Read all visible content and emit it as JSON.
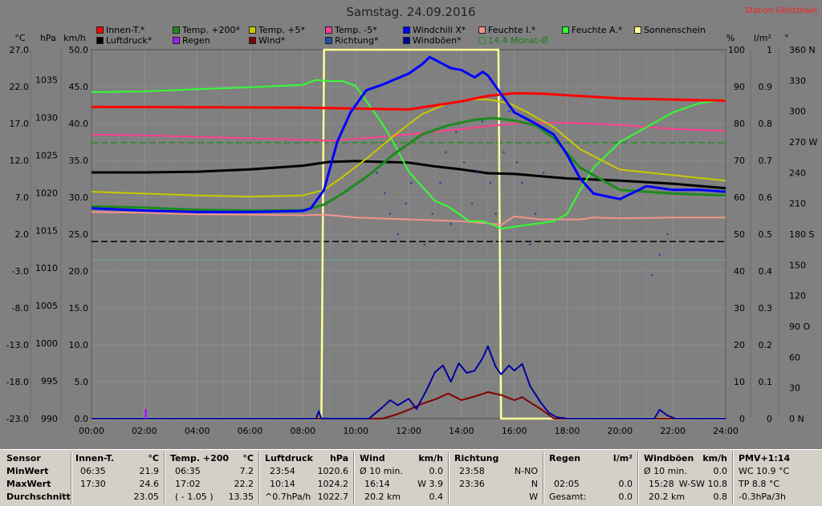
{
  "title": "Samstag. 24.09.2016",
  "station": "Station Göritzhain",
  "colors": {
    "bg": "#808080",
    "grid": "#9a9a9a",
    "innen": "#ff0000",
    "t200": "#1e8a1e",
    "t5": "#c8c800",
    "tm5": "#ff3f8f",
    "wchill": "#0000ff",
    "feuchteI": "#f4948c",
    "feuchteA": "#33ff33",
    "sonne": "#ffff99",
    "luft": "#000000",
    "regen": "#a020f0",
    "wind": "#800000",
    "richtung": "#1f4f9f",
    "boen": "#0000a0",
    "monat": "#2a8a2a"
  },
  "legend": [
    {
      "label": "Innen-T.*",
      "color": "#ff0000"
    },
    {
      "label": "Temp. +200*",
      "color": "#1e8a1e"
    },
    {
      "label": "Temp. +5*",
      "color": "#c8c800"
    },
    {
      "label": "Temp. -5*",
      "color": "#ff3f8f"
    },
    {
      "label": "Windchill X*",
      "color": "#0000ff"
    },
    {
      "label": "Feuchte I.*",
      "color": "#f4948c"
    },
    {
      "label": "Feuchte A.*",
      "color": "#33ff33"
    },
    {
      "label": "Sonnenschein",
      "color": "#ffff99"
    },
    {
      "label": "Luftdruck*",
      "color": "#000000"
    },
    {
      "label": "Regen",
      "color": "#a020f0"
    },
    {
      "label": "Wind*",
      "color": "#800000"
    },
    {
      "label": "Richtung*",
      "color": "#1f4f9f"
    },
    {
      "label": "Windböen*",
      "color": "#0000a0"
    },
    {
      "label": "14.4 Monat-Ø",
      "color": "none"
    }
  ],
  "chart_data": {
    "type": "line",
    "xlim": [
      "00:00",
      "24:00"
    ],
    "x_ticks": [
      "00:00",
      "02:00",
      "04:00",
      "06:00",
      "08:00",
      "10:00",
      "12:00",
      "14:00",
      "16:00",
      "18:00",
      "20:00",
      "22:00",
      "24:00"
    ],
    "axes": {
      "celsius": {
        "unit": "°C",
        "ticks": [
          "27.0",
          "22.0",
          "17.0",
          "12.0",
          "7.0",
          "2.0",
          "-3.0",
          "-8.0",
          "-13.0",
          "-18.0",
          "-23.0"
        ],
        "range": [
          -23,
          27
        ]
      },
      "hpa": {
        "unit": "hPa",
        "ticks": [
          "1035",
          "1030",
          "1025",
          "1020",
          "1015",
          "1010",
          "1005",
          "1000",
          "995",
          "990"
        ],
        "range": [
          990,
          1039
        ]
      },
      "kmh": {
        "unit": "km/h",
        "ticks": [
          "50.0",
          "45.0",
          "40.0",
          "35.0",
          "30.0",
          "25.0",
          "20.0",
          "15.0",
          "10.0",
          "5.0",
          "0.0"
        ],
        "range": [
          0,
          50
        ]
      },
      "percent": {
        "unit": "%",
        "ticks": [
          "100",
          "90",
          "80",
          "70",
          "60",
          "50",
          "40",
          "30",
          "20",
          "10",
          "0"
        ],
        "range": [
          0,
          100
        ]
      },
      "rain": {
        "unit": "l/m²",
        "ticks": [
          "1",
          "0.9",
          "0.8",
          "0.7",
          "0.6",
          "0.5",
          "0.4",
          "0.3",
          "0.2",
          "0.1",
          "0"
        ],
        "range": [
          0,
          1
        ]
      },
      "direction": {
        "unit": "°",
        "ticks": [
          "360 N",
          "330",
          "300",
          "270 W",
          "240",
          "210",
          "180 S",
          "150",
          "120",
          "90 O",
          "60",
          "30",
          "0 N"
        ],
        "range": [
          0,
          360
        ]
      }
    },
    "series": [
      {
        "name": "Innen-T.*",
        "axis": "percent",
        "x": [
          0,
          8,
          12,
          14,
          15,
          16,
          17,
          20,
          24
        ],
        "y": [
          84.5,
          84.3,
          83.8,
          86,
          87.5,
          88.2,
          88.1,
          86.8,
          86.2
        ]
      },
      {
        "name": "Temp. +200*",
        "axis": "percent",
        "x": [
          0,
          2,
          4,
          6,
          8,
          8.8,
          9.5,
          10.5,
          11.5,
          12.5,
          13.5,
          14.5,
          15.2,
          16,
          16.8,
          17.5,
          18.5,
          20,
          22,
          24
        ],
        "y": [
          57.5,
          57.2,
          56.6,
          56.4,
          56.5,
          58,
          61,
          66,
          72,
          77,
          79.5,
          81,
          81.5,
          80.8,
          79.5,
          76,
          68,
          62,
          61,
          60.5
        ]
      },
      {
        "name": "Temp. +5*",
        "axis": "percent",
        "x": [
          0,
          2,
          4,
          6,
          8,
          8.8,
          9.5,
          10.5,
          11.5,
          12.5,
          13.5,
          14.3,
          15,
          15.8,
          16.5,
          17.5,
          18.5,
          20,
          22,
          24
        ],
        "y": [
          61.5,
          61,
          60.5,
          60.2,
          60.5,
          62,
          65.5,
          71,
          77,
          82.5,
          85.5,
          86.5,
          86.5,
          85.5,
          83,
          79,
          73,
          67.5,
          66,
          64.5
        ]
      },
      {
        "name": "Temp. -5*",
        "axis": "percent",
        "x": [
          0,
          2,
          4,
          6,
          8,
          9,
          10,
          12,
          14,
          15,
          16,
          17,
          18,
          20,
          22,
          24
        ],
        "y": [
          77,
          76.8,
          76.4,
          76,
          75.6,
          75.3,
          75.8,
          77,
          78.5,
          79.3,
          80,
          80.2,
          80.2,
          79.6,
          78.5,
          78
        ]
      },
      {
        "name": "Windchill X*",
        "axis": "percent",
        "x": [
          0,
          2,
          4,
          6,
          8,
          8.3,
          8.8,
          9.3,
          9.8,
          10.4,
          11,
          11.5,
          12,
          12.5,
          12.8,
          13.2,
          13.6,
          14,
          14.5,
          14.8,
          15,
          15.5,
          16,
          16.8,
          17.5,
          18,
          18.5,
          19,
          20,
          21,
          22,
          23,
          24
        ],
        "y": [
          57,
          56.4,
          56,
          56,
          56.3,
          57,
          62,
          75,
          83,
          89,
          90.5,
          92,
          93.5,
          96,
          98,
          96.5,
          95,
          94.5,
          92.5,
          94,
          93,
          88,
          83,
          80,
          77,
          71.5,
          65,
          61,
          59.5,
          63,
          62,
          62,
          61.5
        ]
      },
      {
        "name": "Feuchte I.*",
        "axis": "percent",
        "x": [
          0,
          2,
          4,
          6,
          8,
          8.8,
          10,
          12,
          14,
          15.2,
          15.5,
          16,
          17,
          18.5,
          19,
          20,
          22,
          24
        ],
        "y": [
          56,
          55.8,
          55.4,
          55.3,
          55.1,
          55.3,
          54.5,
          54,
          53.5,
          52.8,
          52.5,
          54.8,
          54,
          54,
          54.5,
          54.3,
          54.5,
          54.5
        ]
      },
      {
        "name": "Feuchte A.*",
        "axis": "percent",
        "x": [
          0,
          2,
          4,
          6,
          8,
          8.5,
          9,
          9.5,
          10,
          11,
          11.5,
          12,
          12.5,
          13,
          13.5,
          14,
          14.3,
          14.8,
          15.2,
          15.5,
          16,
          16.5,
          17,
          17.5,
          18,
          18.5,
          19,
          20,
          21,
          22,
          23,
          24
        ],
        "y": [
          88.5,
          88.7,
          89.3,
          89.8,
          90.5,
          91.8,
          91.5,
          91.5,
          90.2,
          80,
          74,
          67,
          63,
          59,
          57.5,
          55,
          53.5,
          53.5,
          52.5,
          51.5,
          52,
          52.5,
          53,
          53.5,
          55.5,
          62,
          68,
          75,
          79,
          83,
          85.5,
          86.5
        ]
      },
      {
        "name": "Sonnenschein",
        "axis": "percent",
        "x": [
          0,
          8.7,
          8.8,
          15.4,
          15.5,
          24
        ],
        "y": [
          0,
          0,
          100,
          100,
          0,
          0
        ]
      },
      {
        "name": "Luftdruck*",
        "axis": "hpa",
        "x": [
          0,
          2,
          4,
          6,
          8,
          9,
          10,
          11,
          12,
          13,
          14,
          15,
          16,
          17,
          18,
          20,
          22,
          24
        ],
        "y": [
          1022.7,
          1022.7,
          1022.8,
          1023.1,
          1023.6,
          1024.1,
          1024.2,
          1024.1,
          1024,
          1023.5,
          1023.1,
          1022.6,
          1022.5,
          1022.2,
          1021.9,
          1021.6,
          1021.2,
          1020.6
        ]
      },
      {
        "name": "Wind*",
        "axis": "kmh",
        "x": [
          0,
          11,
          11.5,
          12,
          12.5,
          13,
          13.5,
          14,
          14.5,
          15,
          15.5,
          16,
          16.3,
          16.6,
          17,
          17.5,
          24
        ],
        "y": [
          0,
          0,
          0.5,
          1.2,
          2,
          2.6,
          3.4,
          2.5,
          3,
          3.6,
          3.2,
          2.5,
          2.9,
          2.2,
          1.3,
          0,
          0
        ]
      },
      {
        "name": "Windböen*",
        "axis": "kmh",
        "x": [
          0,
          8.5,
          8.6,
          8.7,
          10.5,
          11,
          11.3,
          11.6,
          12,
          12.3,
          12.7,
          13,
          13.3,
          13.6,
          13.9,
          14.2,
          14.5,
          14.8,
          15,
          15.3,
          15.5,
          15.8,
          16,
          16.3,
          16.6,
          17,
          17.3,
          17.6,
          18,
          21.3,
          21.5,
          21.8,
          22.1,
          24
        ],
        "y": [
          0,
          0,
          1,
          0,
          0,
          1.5,
          2.5,
          1.8,
          2.7,
          1.3,
          4,
          6.3,
          7.2,
          5,
          7.5,
          6.2,
          6.5,
          8.2,
          9.8,
          7,
          6,
          7.2,
          6.5,
          7.4,
          4.4,
          2.2,
          0.8,
          0.2,
          0,
          0,
          1.2,
          0.4,
          0,
          0
        ]
      },
      {
        "name": "Regen",
        "axis": "rain",
        "x": [
          2.05
        ],
        "y": [
          0.02
        ]
      },
      {
        "name": "Richtung*",
        "axis": "direction",
        "type": "scatter",
        "x": [
          10.8,
          11.1,
          11.3,
          11.6,
          11.9,
          12.1,
          12.3,
          12.6,
          12.9,
          13.2,
          13.4,
          13.6,
          13.8,
          14.1,
          14.4,
          14.6,
          14.8,
          15.1,
          15.3,
          15.6,
          15.8,
          16.1,
          16.3,
          16.6,
          16.8,
          17.1,
          21.2,
          21.5,
          21.8
        ],
        "y": [
          240,
          220,
          200,
          180,
          210,
          230,
          250,
          170,
          200,
          230,
          260,
          190,
          280,
          250,
          210,
          240,
          290,
          230,
          200,
          260,
          300,
          250,
          230,
          170,
          200,
          240,
          140,
          160,
          180
        ]
      }
    ],
    "reference_lines": [
      {
        "name": "14.4 Monat-Ø",
        "axis": "celsius",
        "value": 14.4,
        "color": "#2a8a2a",
        "style": "dashed"
      },
      {
        "axis": "kmh",
        "value": 24,
        "color": "#000000",
        "style": "dashed"
      },
      {
        "axis": "kmh",
        "value": 21.5,
        "color": "#6aa0a8",
        "style": "solid"
      }
    ]
  },
  "stats": {
    "sensor": {
      "header": "Sensor",
      "rows": [
        "MinWert",
        "MaxWert",
        "Durchschnitt"
      ]
    },
    "innen": {
      "header": "Innen-T.",
      "unit": "°C",
      "rows": [
        [
          "06:35",
          "21.9"
        ],
        [
          "17:30",
          "24.6"
        ],
        [
          "",
          "23.05"
        ]
      ]
    },
    "t200": {
      "header": "Temp. +200",
      "unit": "°C",
      "rows": [
        [
          "06:35",
          "7.2"
        ],
        [
          "17:02",
          "22.2"
        ],
        [
          "( - 1.05 )",
          "13.35"
        ]
      ]
    },
    "luft": {
      "header": "Luftdruck",
      "unit": "hPa",
      "rows": [
        [
          "23:54",
          "1020.6"
        ],
        [
          "10:14",
          "1024.2"
        ],
        [
          "^0.7hPa/h",
          "1022.7"
        ]
      ]
    },
    "wind": {
      "header": "Wind",
      "unit": "km/h",
      "rows": [
        [
          "Ø 10 min.",
          "0.0"
        ],
        [
          "16:14",
          "W 3.9"
        ],
        [
          "20.2 km",
          "0.4"
        ]
      ]
    },
    "richtung": {
      "header": "Richtung",
      "rows": [
        [
          "23:58",
          "N-NO"
        ],
        [
          "23:36",
          "N"
        ],
        [
          "",
          "W"
        ]
      ]
    },
    "regen": {
      "header": "Regen",
      "unit": "l/m²",
      "rows": [
        [
          "",
          ""
        ],
        [
          "02:05",
          "0.0"
        ],
        [
          "Gesamt:",
          "0.0"
        ]
      ]
    },
    "boen": {
      "header": "Windböen",
      "unit": "km/h",
      "rows": [
        [
          "Ø 10 min.",
          "0.0"
        ],
        [
          "15:28",
          "W-SW 10.8"
        ],
        [
          "20.2 km",
          "0.8"
        ]
      ]
    },
    "pmv": {
      "header": "PMV+1:14",
      "rows": [
        "WC 10.9 °C",
        "TP 8.8 °C",
        "-0.3hPa/3h"
      ]
    }
  }
}
